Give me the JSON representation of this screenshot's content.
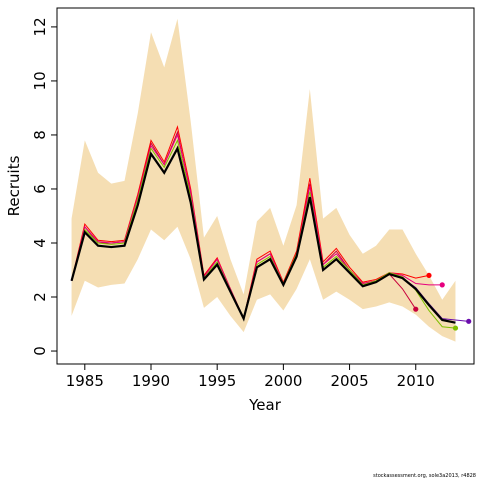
{
  "chart_data": {
    "type": "line",
    "xlabel": "Year",
    "ylabel": "Recruits",
    "caption": "stockassessment.org, sole3a2013, r4828",
    "x": [
      1984,
      1985,
      1986,
      1987,
      1988,
      1989,
      1990,
      1991,
      1992,
      1993,
      1994,
      1995,
      1996,
      1997,
      1998,
      1999,
      2000,
      2001,
      2002,
      2003,
      2004,
      2005,
      2006,
      2007,
      2008,
      2009,
      2010,
      2011,
      2012,
      2013,
      2014
    ],
    "xlim": [
      1982.9,
      2014.4
    ],
    "xticks": [
      1985,
      1990,
      1995,
      2000,
      2005,
      2010
    ],
    "ylim": [
      -0.48,
      12.7
    ],
    "yticks": [
      0,
      2,
      4,
      6,
      8,
      10,
      12
    ],
    "band": {
      "color": "#f5deb3",
      "upper": [
        4.9,
        7.8,
        6.6,
        6.2,
        6.3,
        8.8,
        11.8,
        10.5,
        12.3,
        8.5,
        4.2,
        5.0,
        3.4,
        2.1,
        4.8,
        5.3,
        3.9,
        5.4,
        9.7,
        4.9,
        5.3,
        4.3,
        3.6,
        3.9,
        4.5,
        4.5,
        3.6,
        2.8,
        1.9,
        2.6,
        null
      ],
      "lower": [
        1.3,
        2.6,
        2.35,
        2.45,
        2.5,
        3.4,
        4.5,
        4.1,
        4.6,
        3.4,
        1.6,
        2.0,
        1.3,
        0.7,
        1.9,
        2.1,
        1.5,
        2.3,
        3.4,
        1.9,
        2.2,
        1.9,
        1.55,
        1.65,
        1.8,
        1.65,
        1.35,
        0.9,
        0.55,
        0.35,
        null
      ]
    },
    "series": [
      {
        "color": "#c8003c",
        "linewidth": 1,
        "end_marker": true,
        "values": [
          2.6,
          4.6,
          4.0,
          4.0,
          4.05,
          5.7,
          7.7,
          6.9,
          8.1,
          5.8,
          2.75,
          3.4,
          2.3,
          1.2,
          3.3,
          3.6,
          2.5,
          3.6,
          6.2,
          3.2,
          3.7,
          3.0,
          2.5,
          2.6,
          2.85,
          2.3,
          1.55,
          null,
          null,
          null,
          null
        ]
      },
      {
        "color": "#ff0000",
        "linewidth": 1,
        "end_marker": true,
        "values": [
          2.6,
          4.7,
          4.1,
          4.05,
          4.1,
          5.8,
          7.8,
          7.0,
          8.3,
          6.0,
          2.8,
          3.45,
          2.3,
          1.2,
          3.4,
          3.7,
          2.55,
          3.7,
          6.4,
          3.3,
          3.8,
          3.1,
          2.55,
          2.65,
          2.9,
          2.85,
          2.7,
          2.8,
          null,
          null,
          null
        ]
      },
      {
        "color": "#e6007e",
        "linewidth": 1,
        "end_marker": true,
        "values": [
          2.6,
          4.6,
          4.05,
          4.0,
          4.05,
          5.7,
          7.6,
          6.9,
          8.0,
          5.9,
          2.75,
          3.4,
          2.3,
          1.2,
          3.3,
          3.6,
          2.5,
          3.6,
          6.1,
          3.2,
          3.6,
          3.0,
          2.5,
          2.6,
          2.9,
          2.8,
          2.5,
          2.45,
          2.45,
          null,
          null
        ]
      },
      {
        "color": "#7fbf00",
        "linewidth": 1,
        "end_marker": true,
        "values": [
          2.6,
          4.5,
          4.0,
          3.95,
          4.0,
          5.6,
          7.5,
          6.8,
          7.8,
          5.7,
          2.7,
          3.3,
          2.25,
          1.2,
          3.2,
          3.5,
          2.5,
          3.6,
          5.9,
          3.1,
          3.5,
          3.0,
          2.45,
          2.6,
          2.9,
          2.75,
          2.25,
          1.5,
          0.9,
          0.85,
          null
        ]
      },
      {
        "color": "#6a0dad",
        "linewidth": 1,
        "end_marker": true,
        "values": [
          2.6,
          4.4,
          3.9,
          3.85,
          3.9,
          5.4,
          7.3,
          6.6,
          7.5,
          5.5,
          2.65,
          3.2,
          2.2,
          1.2,
          3.1,
          3.4,
          2.45,
          3.5,
          5.7,
          3.0,
          3.4,
          2.9,
          2.4,
          2.55,
          2.85,
          2.7,
          2.35,
          1.75,
          1.2,
          1.15,
          1.1
        ]
      },
      {
        "color": "#000000",
        "linewidth": 2.2,
        "end_marker": false,
        "values": [
          2.6,
          4.4,
          3.9,
          3.85,
          3.9,
          5.4,
          7.3,
          6.6,
          7.5,
          5.5,
          2.65,
          3.2,
          2.2,
          1.2,
          3.1,
          3.4,
          2.45,
          3.5,
          5.7,
          3.0,
          3.4,
          2.9,
          2.4,
          2.55,
          2.85,
          2.7,
          2.3,
          1.7,
          1.15,
          1.05,
          null
        ]
      }
    ]
  }
}
